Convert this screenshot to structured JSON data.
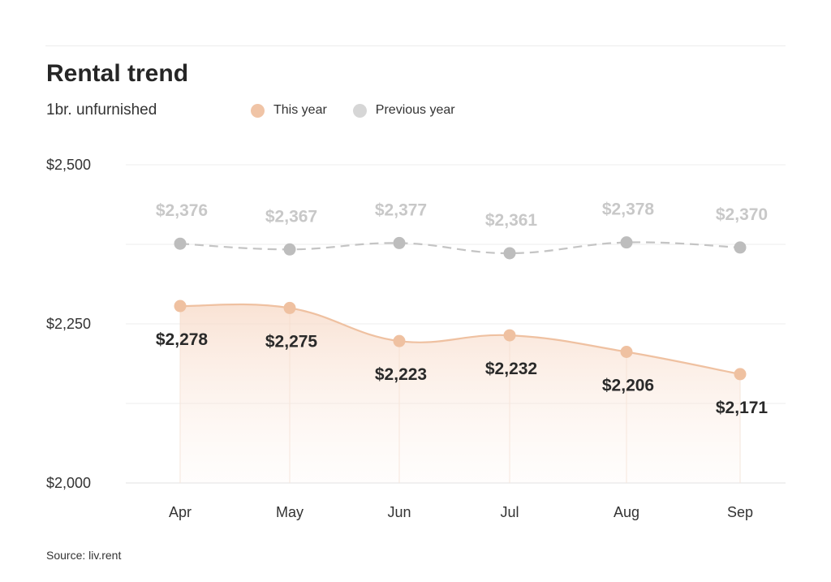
{
  "header": {
    "title": "Rental trend",
    "subtitle": "1br. unfurnished"
  },
  "legend": {
    "this_year": {
      "label": "This year",
      "color": "#f0c4a6"
    },
    "previous_year": {
      "label": "Previous year",
      "color": "#d6d6d6"
    }
  },
  "footer": {
    "source": "Source: liv.rent"
  },
  "chart_data": {
    "type": "line",
    "categories": [
      "Apr",
      "May",
      "Jun",
      "Jul",
      "Aug",
      "Sep"
    ],
    "series": [
      {
        "name": "This year",
        "values": [
          2278,
          2275,
          2223,
          2232,
          2206,
          2171
        ],
        "labels": [
          "$2,278",
          "$2,275",
          "$2,223",
          "$2,232",
          "$2,206",
          "$2,171"
        ],
        "color": "#efc1a1",
        "style": "solid-smooth-area"
      },
      {
        "name": "Previous year",
        "values": [
          2376,
          2367,
          2377,
          2361,
          2378,
          2370
        ],
        "labels": [
          "$2,376",
          "$2,367",
          "$2,377",
          "$2,361",
          "$2,378",
          "$2,370"
        ],
        "color": "#bdbdbd",
        "style": "dashed-smooth"
      }
    ],
    "ylim": [
      2000,
      2500
    ],
    "yticks": [
      2000,
      2250,
      2500
    ],
    "ytick_labels": [
      "$2,000",
      "$2,250",
      "$2,500"
    ],
    "grid_values": [
      2125,
      2250,
      2375,
      2500
    ],
    "grid": true,
    "legend_position": "top"
  }
}
